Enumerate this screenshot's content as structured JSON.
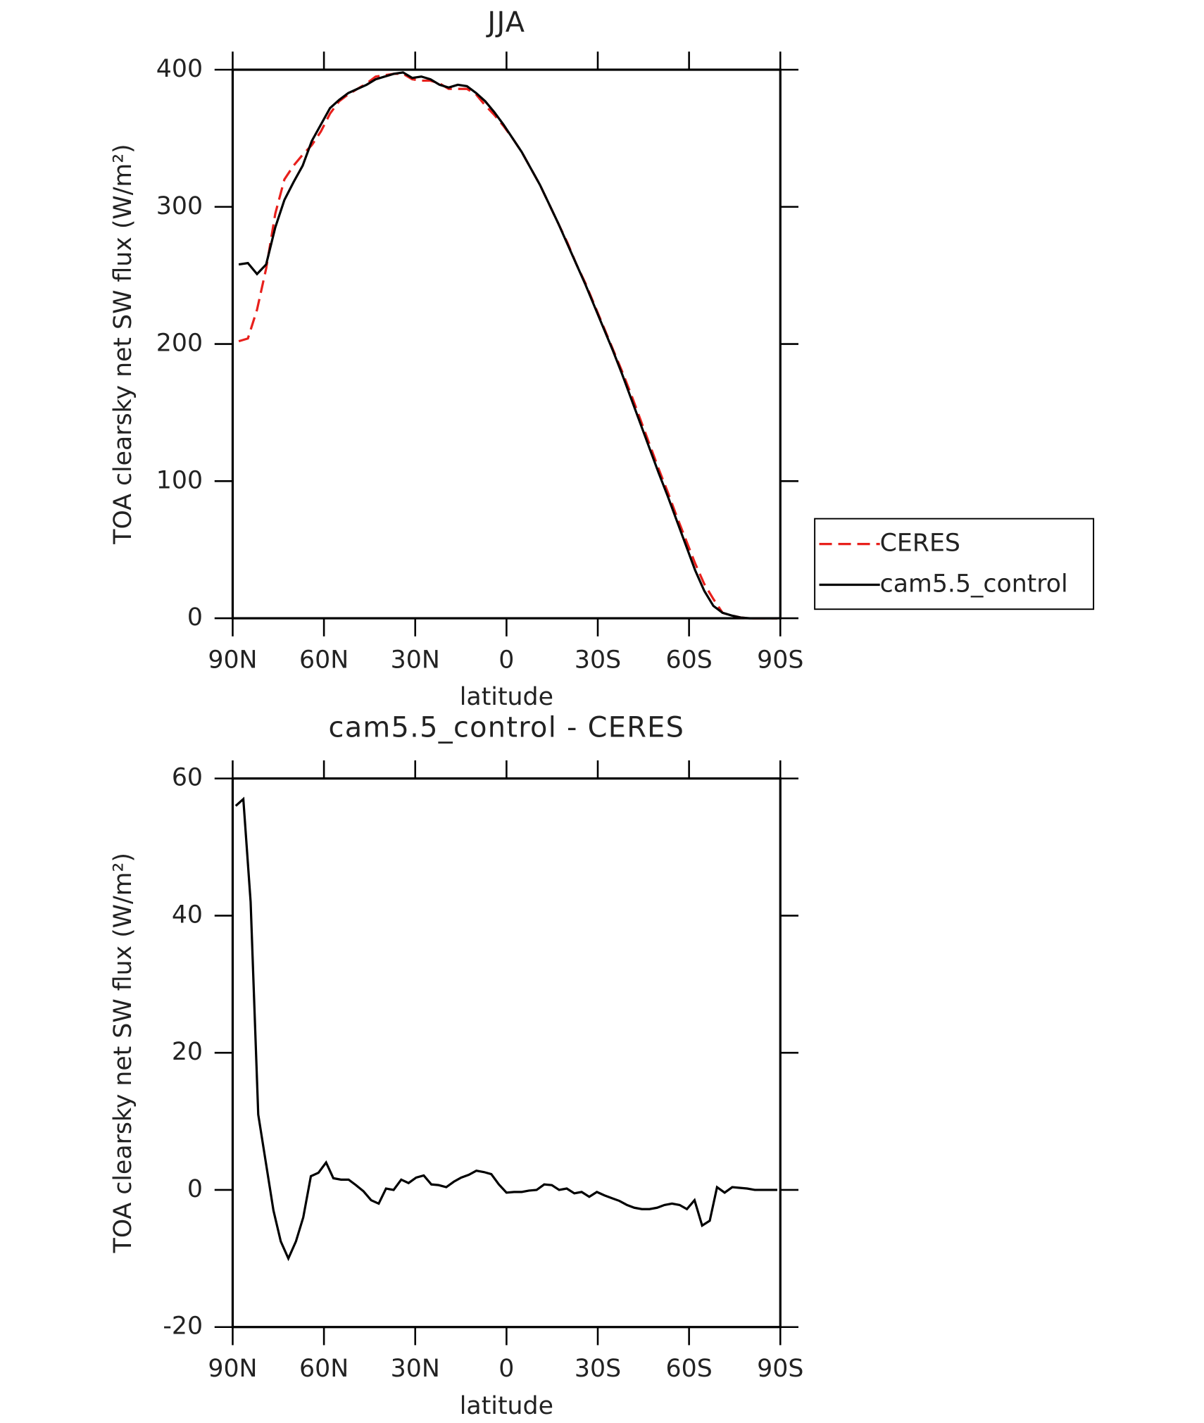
{
  "chart_data": [
    {
      "type": "line",
      "title": "JJA",
      "xlabel": "latitude",
      "ylabel": "TOA clearsky net SW flux (W/m²)",
      "x": [
        88,
        85,
        82,
        79,
        76,
        73,
        70,
        67,
        64,
        61,
        58,
        55,
        52,
        49,
        46,
        43,
        40,
        37,
        34,
        31,
        28,
        25,
        22,
        19,
        16,
        13,
        10,
        7,
        4,
        1,
        -2,
        -5,
        -8,
        -11,
        -14,
        -17,
        -20,
        -23,
        -26,
        -29,
        -32,
        -35,
        -38,
        -41,
        -44,
        -47,
        -50,
        -53,
        -56,
        -59,
        -62,
        -65,
        -68,
        -71,
        -74,
        -77,
        -80,
        -83,
        -86,
        -89
      ],
      "series": [
        {
          "name": "CERES",
          "color": "#e8201c",
          "style": "dashed",
          "values": [
            202,
            204,
            225,
            255,
            295,
            320,
            330,
            338,
            345,
            355,
            368,
            377,
            382,
            386,
            390,
            395,
            396,
            397,
            397,
            393,
            392,
            392,
            390,
            386,
            386,
            386,
            382,
            374,
            367,
            359,
            350,
            340,
            328,
            316,
            302,
            288,
            274,
            258,
            244,
            228,
            212,
            196,
            180,
            163,
            145,
            127,
            109,
            92,
            74,
            57,
            40,
            25,
            14,
            4,
            2,
            0.5,
            0,
            0,
            0,
            0
          ]
        },
        {
          "name": "cam5.5_control",
          "color": "#000000",
          "style": "solid",
          "values": [
            258,
            259,
            251,
            258,
            285,
            305,
            318,
            330,
            348,
            360,
            372,
            378,
            383,
            386,
            389,
            393,
            395,
            397,
            398,
            394,
            395,
            393,
            389,
            387,
            389,
            388,
            383,
            377,
            369,
            360,
            350,
            340,
            328,
            316,
            302,
            288,
            273,
            258,
            243,
            227,
            211,
            195,
            178,
            160,
            142,
            124,
            106,
            89,
            71,
            53,
            35,
            20,
            9,
            4,
            2,
            0.5,
            0,
            0,
            0,
            0
          ]
        }
      ],
      "xlim": [
        90,
        -90
      ],
      "xticks": [
        {
          "value": 90,
          "label": "90N"
        },
        {
          "value": 60,
          "label": "60N"
        },
        {
          "value": 30,
          "label": "30N"
        },
        0,
        {
          "value": -30,
          "label": "30S"
        },
        {
          "value": -60,
          "label": "60S"
        },
        {
          "value": -90,
          "label": "90S"
        }
      ],
      "ylim": [
        0,
        400
      ],
      "yticks": [
        0,
        100,
        200,
        300,
        400
      ],
      "legend": "right"
    },
    {
      "type": "line",
      "title": "cam5.5_control - CERES",
      "xlabel": "latitude",
      "ylabel": "TOA clearsky net SW flux (W/m²)",
      "x": [
        89.0,
        86.5,
        84.1,
        81.6,
        79.1,
        76.6,
        74.2,
        71.7,
        69.2,
        66.8,
        64.3,
        61.8,
        59.3,
        56.9,
        54.4,
        51.9,
        49.5,
        47.0,
        44.5,
        42.0,
        39.6,
        37.1,
        34.6,
        32.2,
        29.7,
        27.2,
        24.7,
        22.3,
        19.8,
        17.3,
        14.9,
        12.4,
        9.9,
        7.4,
        5.0,
        2.5,
        0.0,
        -2.5,
        -5.0,
        -7.4,
        -9.9,
        -12.4,
        -14.9,
        -17.3,
        -19.8,
        -22.3,
        -24.7,
        -27.2,
        -29.7,
        -32.2,
        -34.6,
        -37.1,
        -39.6,
        -42.0,
        -44.5,
        -47.0,
        -49.5,
        -51.9,
        -54.4,
        -56.9,
        -59.3,
        -61.8,
        -64.3,
        -66.8,
        -69.2,
        -71.7,
        -74.2,
        -76.6,
        -79.1,
        -81.6,
        -84.1,
        -86.5,
        -89.0
      ],
      "series": [
        {
          "name": "cam5.5_control - CERES",
          "color": "#000000",
          "style": "solid",
          "values": [
            56,
            57,
            42,
            11,
            4,
            -3,
            -7.5,
            -10,
            -7.5,
            -4,
            2,
            2.5,
            4,
            1.7,
            1.5,
            1.5,
            0.7,
            -0.2,
            -1.5,
            -2,
            0.2,
            0,
            1.5,
            1,
            1.8,
            2.1,
            0.8,
            0.7,
            0.4,
            1.2,
            1.8,
            2.2,
            2.8,
            2.6,
            2.3,
            0.8,
            -0.4,
            -0.3,
            -0.3,
            -0.1,
            0,
            0.8,
            0.7,
            0,
            0.2,
            -0.5,
            -0.3,
            -1,
            -0.3,
            -0.8,
            -1.2,
            -1.6,
            -2.2,
            -2.6,
            -2.8,
            -2.8,
            -2.6,
            -2.2,
            -2,
            -2.2,
            -2.8,
            -1.5,
            -5.2,
            -4.5,
            0.4,
            -0.4,
            0.4,
            0.3,
            0.2,
            0,
            0,
            0,
            0
          ]
        }
      ],
      "xlim": [
        90,
        -90
      ],
      "xticks": [
        {
          "value": 90,
          "label": "90N"
        },
        {
          "value": 60,
          "label": "60N"
        },
        {
          "value": 30,
          "label": "30N"
        },
        0,
        {
          "value": -30,
          "label": "30S"
        },
        {
          "value": -60,
          "label": "60S"
        },
        {
          "value": -90,
          "label": "90S"
        }
      ],
      "ylim": [
        -20,
        60
      ],
      "yticks": [
        -20,
        0,
        20,
        40,
        60
      ]
    }
  ]
}
